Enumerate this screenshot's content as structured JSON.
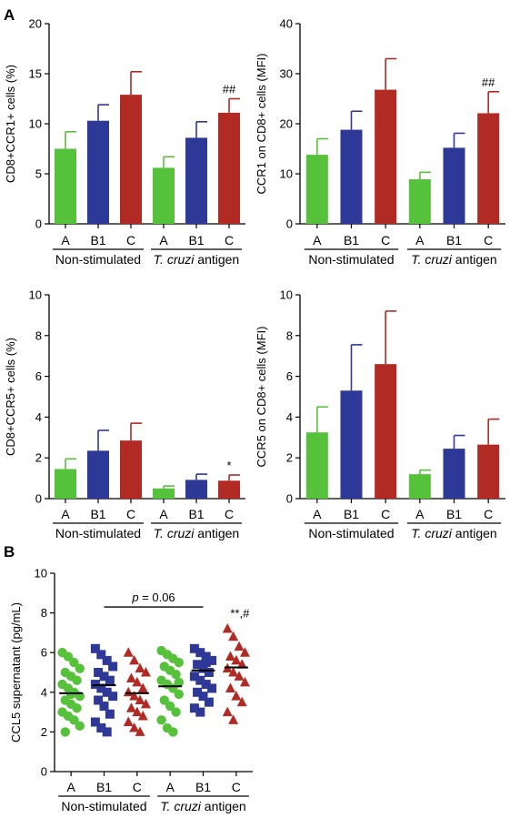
{
  "panel_labels": [
    "A",
    "B"
  ],
  "colors": {
    "A": "#56c13a",
    "B1": "#2e3896",
    "C": "#b12b24"
  },
  "chart_data": [
    {
      "type": "bar",
      "ylabel": "CD8+CCR1+ cells (%)",
      "ylim": [
        0,
        20
      ],
      "yticks": [
        "0",
        "5",
        "10",
        "15",
        "20"
      ],
      "categories": [
        "A",
        "B1",
        "C",
        "A",
        "B1",
        "C"
      ],
      "groups": [
        "Non-stimulated",
        "T. cruzi antigen"
      ],
      "values": [
        7.5,
        10.3,
        12.9,
        5.6,
        8.6,
        11.1
      ],
      "errors": [
        1.7,
        1.6,
        2.3,
        1.1,
        1.6,
        1.4
      ],
      "annotations": [
        "",
        "",
        "",
        "",
        "",
        "##"
      ]
    },
    {
      "type": "bar",
      "ylabel": "CCR1 on CD8+ cells (MFI)",
      "ylim": [
        0,
        40
      ],
      "yticks": [
        "0",
        "10",
        "20",
        "30",
        "40"
      ],
      "categories": [
        "A",
        "B1",
        "C",
        "A",
        "B1",
        "C"
      ],
      "groups": [
        "Non-stimulated",
        "T. cruzi antigen"
      ],
      "values": [
        13.8,
        18.8,
        26.8,
        8.9,
        15.2,
        22.1
      ],
      "errors": [
        3.2,
        3.7,
        6.2,
        1.4,
        2.9,
        4.3
      ],
      "annotations": [
        "",
        "",
        "",
        "",
        "",
        "##"
      ]
    },
    {
      "type": "bar",
      "ylabel": "CD8+CCR5+ cells (%)",
      "ylim": [
        0,
        10
      ],
      "yticks": [
        "0",
        "2",
        "4",
        "6",
        "8",
        "10"
      ],
      "categories": [
        "A",
        "B1",
        "C",
        "A",
        "B1",
        "C"
      ],
      "groups": [
        "Non-stimulated",
        "T. cruzi antigen"
      ],
      "values": [
        1.45,
        2.35,
        2.85,
        0.5,
        0.92,
        0.88
      ],
      "errors": [
        0.5,
        1.0,
        0.85,
        0.12,
        0.28,
        0.28
      ],
      "annotations": [
        "",
        "",
        "",
        "",
        "",
        "*"
      ]
    },
    {
      "type": "bar",
      "ylabel": "CCR5 on CD8+ cells (MFI)",
      "ylim": [
        0,
        10
      ],
      "yticks": [
        "0",
        "2",
        "4",
        "6",
        "8",
        "10"
      ],
      "categories": [
        "A",
        "B1",
        "C",
        "A",
        "B1",
        "C"
      ],
      "groups": [
        "Non-stimulated",
        "T. cruzi antigen"
      ],
      "values": [
        3.25,
        5.3,
        6.6,
        1.2,
        2.45,
        2.65
      ],
      "errors": [
        1.25,
        2.25,
        2.6,
        0.2,
        0.65,
        1.25
      ],
      "annotations": [
        "",
        "",
        "",
        "",
        "",
        ""
      ]
    },
    {
      "type": "scatter",
      "ylabel": "CCL5 supernatant (pg/mL)",
      "ylim": [
        0,
        10
      ],
      "yticks": [
        "0",
        "2",
        "4",
        "6",
        "8",
        "10"
      ],
      "categories": [
        "A",
        "B1",
        "C",
        "A",
        "B1",
        "C"
      ],
      "groups": [
        "Non-stimulated",
        "T. cruzi antigen"
      ],
      "markers": [
        "circle",
        "square",
        "triangle",
        "circle",
        "square",
        "triangle"
      ],
      "means": [
        3.95,
        4.35,
        3.95,
        4.3,
        5.1,
        5.25
      ],
      "points": [
        [
          6.0,
          5.8,
          5.5,
          5.2,
          5.0,
          4.8,
          4.6,
          4.4,
          4.2,
          4.0,
          3.8,
          3.6,
          3.4,
          3.2,
          3.0,
          2.8,
          2.6,
          2.3,
          2.0,
          3.9
        ],
        [
          6.2,
          5.9,
          5.6,
          5.3,
          5.0,
          4.8,
          4.6,
          4.4,
          4.2,
          4.0,
          3.8,
          3.6,
          3.3,
          2.9,
          2.5,
          2.2,
          2.0
        ],
        [
          6.0,
          5.6,
          5.2,
          5.0,
          4.7,
          4.5,
          4.2,
          4.0,
          3.8,
          3.6,
          3.4,
          3.2,
          3.0,
          2.8,
          2.5,
          2.2,
          2.0
        ],
        [
          6.1,
          5.9,
          5.7,
          5.5,
          5.3,
          5.1,
          4.9,
          4.6,
          4.4,
          4.2,
          3.9,
          3.6,
          3.3,
          3.0,
          2.6,
          2.2,
          2.0,
          4.5
        ],
        [
          6.2,
          6.0,
          5.8,
          5.6,
          5.4,
          5.2,
          5.0,
          4.8,
          4.6,
          4.4,
          4.2,
          4.0,
          3.8,
          3.5,
          3.2,
          3.0,
          5.5
        ],
        [
          7.2,
          6.8,
          6.3,
          6.0,
          5.8,
          5.6,
          5.4,
          5.2,
          5.0,
          4.8,
          4.5,
          4.2,
          3.8,
          3.5,
          3.0,
          2.6
        ]
      ],
      "bracket_label": "p = 0.06",
      "bracket_from": 1,
      "bracket_to": 4,
      "annotations": [
        "",
        "",
        "",
        "",
        "",
        "**,#"
      ]
    }
  ]
}
